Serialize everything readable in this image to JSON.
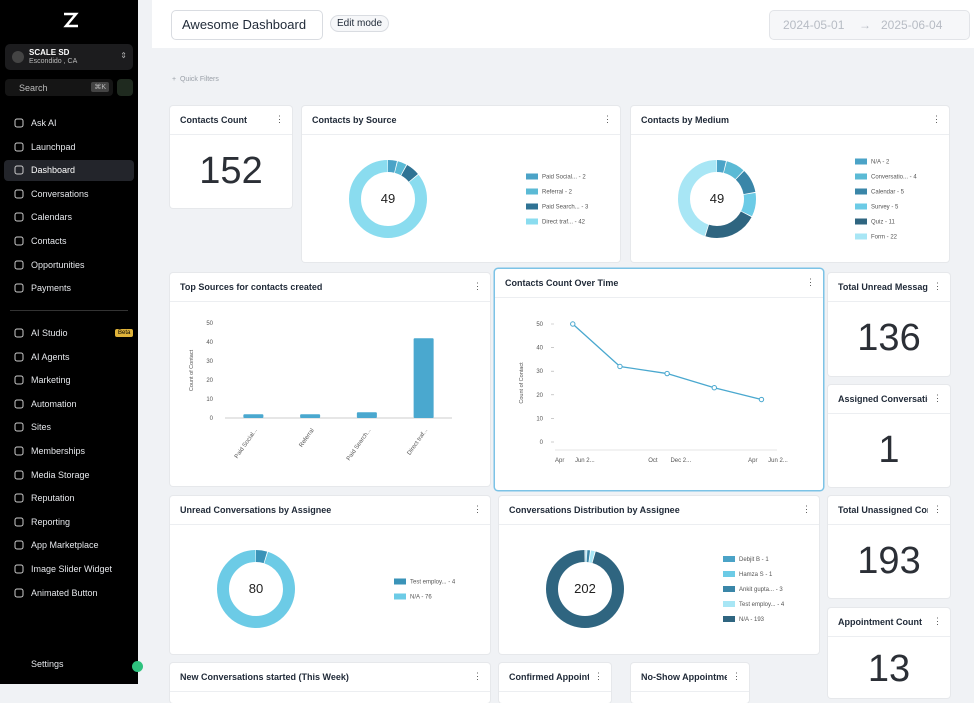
{
  "sidebar": {
    "account": {
      "name": "SCALE SD",
      "location": "Escondido , CA"
    },
    "search": "Search",
    "shortcut": "⌘K",
    "nav": [
      "Ask AI",
      "Launchpad",
      "Dashboard",
      "Conversations",
      "Calendars",
      "Contacts",
      "Opportunities",
      "Payments",
      "AI Studio",
      "AI Agents",
      "Marketing",
      "Automation",
      "Sites",
      "Memberships",
      "Media Storage",
      "Reputation",
      "Reporting",
      "App Marketplace",
      "Image Slider Widget",
      "Animated Button"
    ],
    "beta": "Beta",
    "settings": "Settings"
  },
  "header": {
    "title": "Awesome Dashboard",
    "edit_mode": "Edit mode",
    "date_from": "2024-05-01",
    "date_to": "2025-06-04"
  },
  "quick_filters": "Quick Filters",
  "widgets": [
    {
      "title": "Contacts Count",
      "type": "stat",
      "value": 152
    },
    {
      "title": "Contacts by Source",
      "type": "donut",
      "total": 49,
      "slices": [
        {
          "label": "Paid Social... - 2",
          "value": 2,
          "color": "#4ba3c7"
        },
        {
          "label": "Referral - 2",
          "value": 2,
          "color": "#5bbad5"
        },
        {
          "label": "Paid Search... - 3",
          "value": 3,
          "color": "#2f7394"
        },
        {
          "label": "Direct traf... - 42",
          "value": 42,
          "color": "#8adcef"
        }
      ]
    },
    {
      "title": "Contacts by Medium",
      "type": "donut",
      "total": 49,
      "slices": [
        {
          "label": "N/A - 2",
          "value": 2,
          "color": "#4ba3c7"
        },
        {
          "label": "Conversatio... - 4",
          "value": 4,
          "color": "#5bbad5"
        },
        {
          "label": "Calendar - 5",
          "value": 5,
          "color": "#3a86a8"
        },
        {
          "label": "Survey - 5",
          "value": 5,
          "color": "#6ccbe6"
        },
        {
          "label": "Quiz - 11",
          "value": 11,
          "color": "#2f6580"
        },
        {
          "label": "Form - 22",
          "value": 22,
          "color": "#a8e6f5"
        }
      ]
    },
    {
      "title": "Top Sources for contacts created",
      "type": "bar",
      "y_label": "Count of Contact",
      "categories": [
        "Paid Social...",
        "Referral",
        "Paid Search...",
        "Direct traf..."
      ],
      "values": [
        2,
        2,
        3,
        42
      ],
      "color": "#4aa8cf",
      "ylim": [
        0,
        50
      ],
      "yticks": [
        0,
        10,
        20,
        30,
        40,
        50
      ]
    },
    {
      "title": "Contacts Count Over Time",
      "type": "line",
      "y_label": "Count of Contact",
      "x_labels": [
        "Apr",
        "Jun 2...",
        "Oct",
        "Dec 2...",
        "Apr",
        "Jun 2..."
      ],
      "values": [
        50,
        32,
        29,
        23,
        18
      ],
      "color": "#4aa8cf",
      "ylim": [
        0,
        50
      ],
      "yticks": [
        0,
        10,
        20,
        30,
        40,
        50
      ]
    },
    {
      "title": "Total Unread Message",
      "type": "stat",
      "value": 136
    },
    {
      "title": "Assigned Conversatio",
      "type": "stat",
      "value": 1
    },
    {
      "title": "Unread Conversations by Assignee",
      "type": "donut",
      "total": 80,
      "slices": [
        {
          "label": "Test employ... - 4",
          "value": 4,
          "color": "#3a93b8"
        },
        {
          "label": "N/A - 76",
          "value": 76,
          "color": "#6ccbe6"
        }
      ]
    },
    {
      "title": "Conversations Distribution by Assignee",
      "type": "donut",
      "total": 202,
      "slices": [
        {
          "label": "Debjit B - 1",
          "value": 1,
          "color": "#4ba3c7"
        },
        {
          "label": "Hamza S - 1",
          "value": 1,
          "color": "#6ccbe6"
        },
        {
          "label": "Ankit gupta... - 3",
          "value": 3,
          "color": "#3a86a8"
        },
        {
          "label": "Test employ... - 4",
          "value": 4,
          "color": "#a8e6f5"
        },
        {
          "label": "N/A - 193",
          "value": 193,
          "color": "#2f6580"
        }
      ]
    },
    {
      "title": "Total Unassigned Conv",
      "type": "stat",
      "value": 193
    },
    {
      "title": "Appointment Count",
      "type": "stat",
      "value": 13
    },
    {
      "title": "New Conversations started (This Week)"
    },
    {
      "title": "Confirmed Appointme"
    },
    {
      "title": "No-Show Appointme"
    }
  ]
}
